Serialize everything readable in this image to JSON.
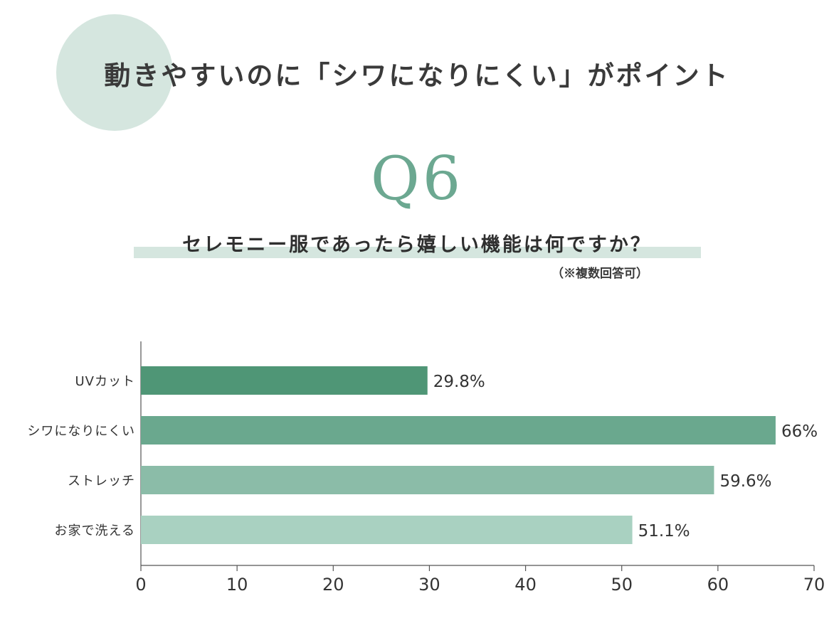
{
  "header": {
    "title": "動きやすいのに「シワになりにくい」がポイント",
    "question_number": "Q6",
    "question": "セレモニー服であったら嬉しい機能は何ですか？",
    "note": "（※複数回答可）"
  },
  "colors": {
    "accent_light": "#d5e6df",
    "accent": "#6ca891",
    "bar_gradient": [
      "#4f9676",
      "#6aa88e",
      "#8bbca8",
      "#a9d1c1"
    ]
  },
  "chart_data": {
    "type": "bar",
    "orientation": "horizontal",
    "categories": [
      "UVカット",
      "シワになりにくい",
      "ストレッチ",
      "お家で洗える"
    ],
    "values": [
      29.8,
      66,
      59.6,
      51.1
    ],
    "value_labels": [
      "29.8%",
      "66%",
      "59.6%",
      "51.1%"
    ],
    "xlim": [
      0,
      70
    ],
    "xticks": [
      0,
      10,
      20,
      30,
      40,
      50,
      60,
      70
    ],
    "grid": false,
    "title": "",
    "xlabel": "",
    "ylabel": ""
  }
}
